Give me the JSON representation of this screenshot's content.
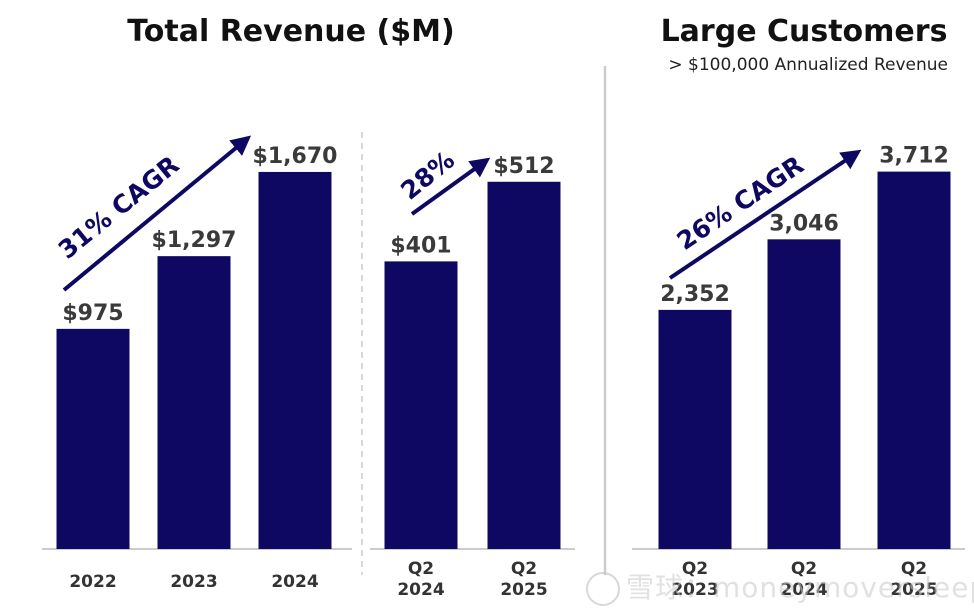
{
  "colors": {
    "bar": "#0f0862",
    "label": "#3a3a3a",
    "tick": "#333333",
    "arrow": "#0f0862",
    "divider": "#cccccc",
    "axis": "#bbbbbb"
  },
  "watermark": "雪球：moneymoversleeps",
  "chart_data": [
    {
      "type": "bar",
      "title": "Total Revenue ($M)",
      "categories": [
        [
          "2022"
        ],
        [
          "2023"
        ],
        [
          "2024"
        ]
      ],
      "values": [
        975,
        1297,
        1670
      ],
      "value_labels": [
        "$975",
        "$1,297",
        "$1,670"
      ],
      "annotation": "31% CAGR",
      "ylim": [
        0,
        1900
      ]
    },
    {
      "type": "bar",
      "title": "",
      "categories": [
        [
          "Q2",
          "2024"
        ],
        [
          "Q2",
          "2025"
        ]
      ],
      "values": [
        401,
        512
      ],
      "value_labels": [
        "$401",
        "$512"
      ],
      "annotation": "28%",
      "ylim": [
        0,
        580
      ]
    },
    {
      "type": "bar",
      "title": "Large Customers",
      "subtitle": "> $100,000 Annualized Revenue",
      "categories": [
        [
          "Q2",
          "2023"
        ],
        [
          "Q2",
          "2024"
        ],
        [
          "Q2",
          "2025"
        ]
      ],
      "values": [
        2352,
        3046,
        3712
      ],
      "value_labels": [
        "2,352",
        "3,046",
        "3,712"
      ],
      "annotation": "26% CAGR",
      "ylim": [
        0,
        4200
      ]
    }
  ]
}
